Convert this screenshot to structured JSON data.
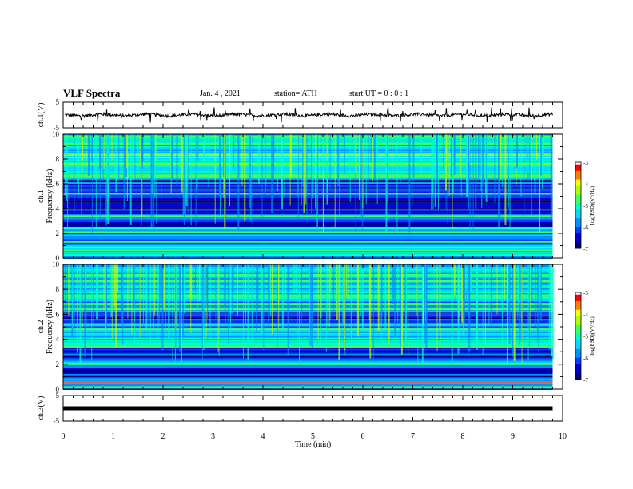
{
  "header": {
    "title": "VLF Spectra",
    "date": "Jan.  4  , 2021",
    "station": "station= ATH",
    "start_ut": "start  UT  =   0 : 0  : 1"
  },
  "colorbar": {
    "label": "log(PSD)(V²/Hz)",
    "ticks": [
      -3,
      -4,
      -5,
      -6,
      -7
    ],
    "colors": [
      "#000000",
      "#00007a",
      "#0000ff",
      "#0050ff",
      "#00b0ff",
      "#00ffd0",
      "#40ff60",
      "#c0ff00",
      "#ffff00",
      "#ff8000",
      "#ff0000",
      "#ffffff"
    ]
  },
  "chart_data": [
    {
      "type": "line",
      "name": "ch1-waveform",
      "ylabel": "ch.1(V)",
      "ylim": [
        -5,
        5
      ],
      "yticks": [
        "5",
        "-5"
      ],
      "xlim": [
        0,
        10
      ],
      "description_values": {
        "mean": 0.0,
        "amplitude_approx": 1.0,
        "spikes": "frequent short spikes to about -2 and +2"
      }
    },
    {
      "type": "heatmap",
      "name": "ch1-spectrogram",
      "ylabel": "ch.1\nFrequency  (kHz)",
      "ylim": [
        0,
        10
      ],
      "yticks": [
        "0",
        "2",
        "4",
        "6",
        "8",
        "10"
      ],
      "xlim": [
        0,
        9.8
      ],
      "zlim": [
        -7,
        -3
      ],
      "bands": [
        {
          "f_lo": 0.0,
          "f_hi": 1.0,
          "level": -5.2
        },
        {
          "f_lo": 1.0,
          "f_hi": 2.0,
          "level": -5.8
        },
        {
          "f_lo": 2.0,
          "f_hi": 2.6,
          "level": -5.6
        },
        {
          "f_lo": 2.6,
          "f_hi": 3.2,
          "level": -6.5
        },
        {
          "f_lo": 3.2,
          "f_hi": 3.6,
          "level": -6.3
        },
        {
          "f_lo": 3.6,
          "f_hi": 4.8,
          "level": -6.9
        },
        {
          "f_lo": 4.8,
          "f_hi": 6.4,
          "level": -6.0
        },
        {
          "f_lo": 6.4,
          "f_hi": 10.0,
          "level": -5.1
        }
      ],
      "lines_khz": [
        0.6,
        1.3,
        2.1,
        3.4,
        5.2,
        6.6,
        6.7
      ]
    },
    {
      "type": "heatmap",
      "name": "ch2-spectrogram",
      "ylabel": "ch.2\nFrequency  (kHz)",
      "ylim": [
        0,
        10
      ],
      "yticks": [
        "0",
        "2",
        "4",
        "6",
        "8",
        "10"
      ],
      "xlim": [
        0,
        9.8
      ],
      "zlim": [
        -7,
        -3
      ],
      "bands": [
        {
          "f_lo": 0.0,
          "f_hi": 1.0,
          "level": -5.4
        },
        {
          "f_lo": 1.0,
          "f_hi": 1.8,
          "level": -6.2
        },
        {
          "f_lo": 1.8,
          "f_hi": 2.6,
          "level": -5.6
        },
        {
          "f_lo": 2.6,
          "f_hi": 3.4,
          "level": -6.4
        },
        {
          "f_lo": 3.4,
          "f_hi": 5.0,
          "level": -5.5
        },
        {
          "f_lo": 5.0,
          "f_hi": 6.2,
          "level": -6.0
        },
        {
          "f_lo": 6.2,
          "f_hi": 10.0,
          "level": -5.3
        }
      ],
      "lines_khz": [
        0.5,
        2.0,
        3.4,
        4.8,
        6.4
      ]
    },
    {
      "type": "line",
      "name": "ch3-waveform",
      "ylabel": "ch.3(V)",
      "ylim": [
        -5,
        5
      ],
      "yticks": [
        "5",
        "-5"
      ],
      "xlim": [
        0,
        9.8
      ],
      "values_const": 0.0
    }
  ],
  "xaxis": {
    "label": "Time  (min)",
    "ticks": [
      "0",
      "1",
      "2",
      "3",
      "4",
      "5",
      "6",
      "7",
      "8",
      "9",
      "10"
    ],
    "xlim": [
      0,
      10
    ]
  }
}
